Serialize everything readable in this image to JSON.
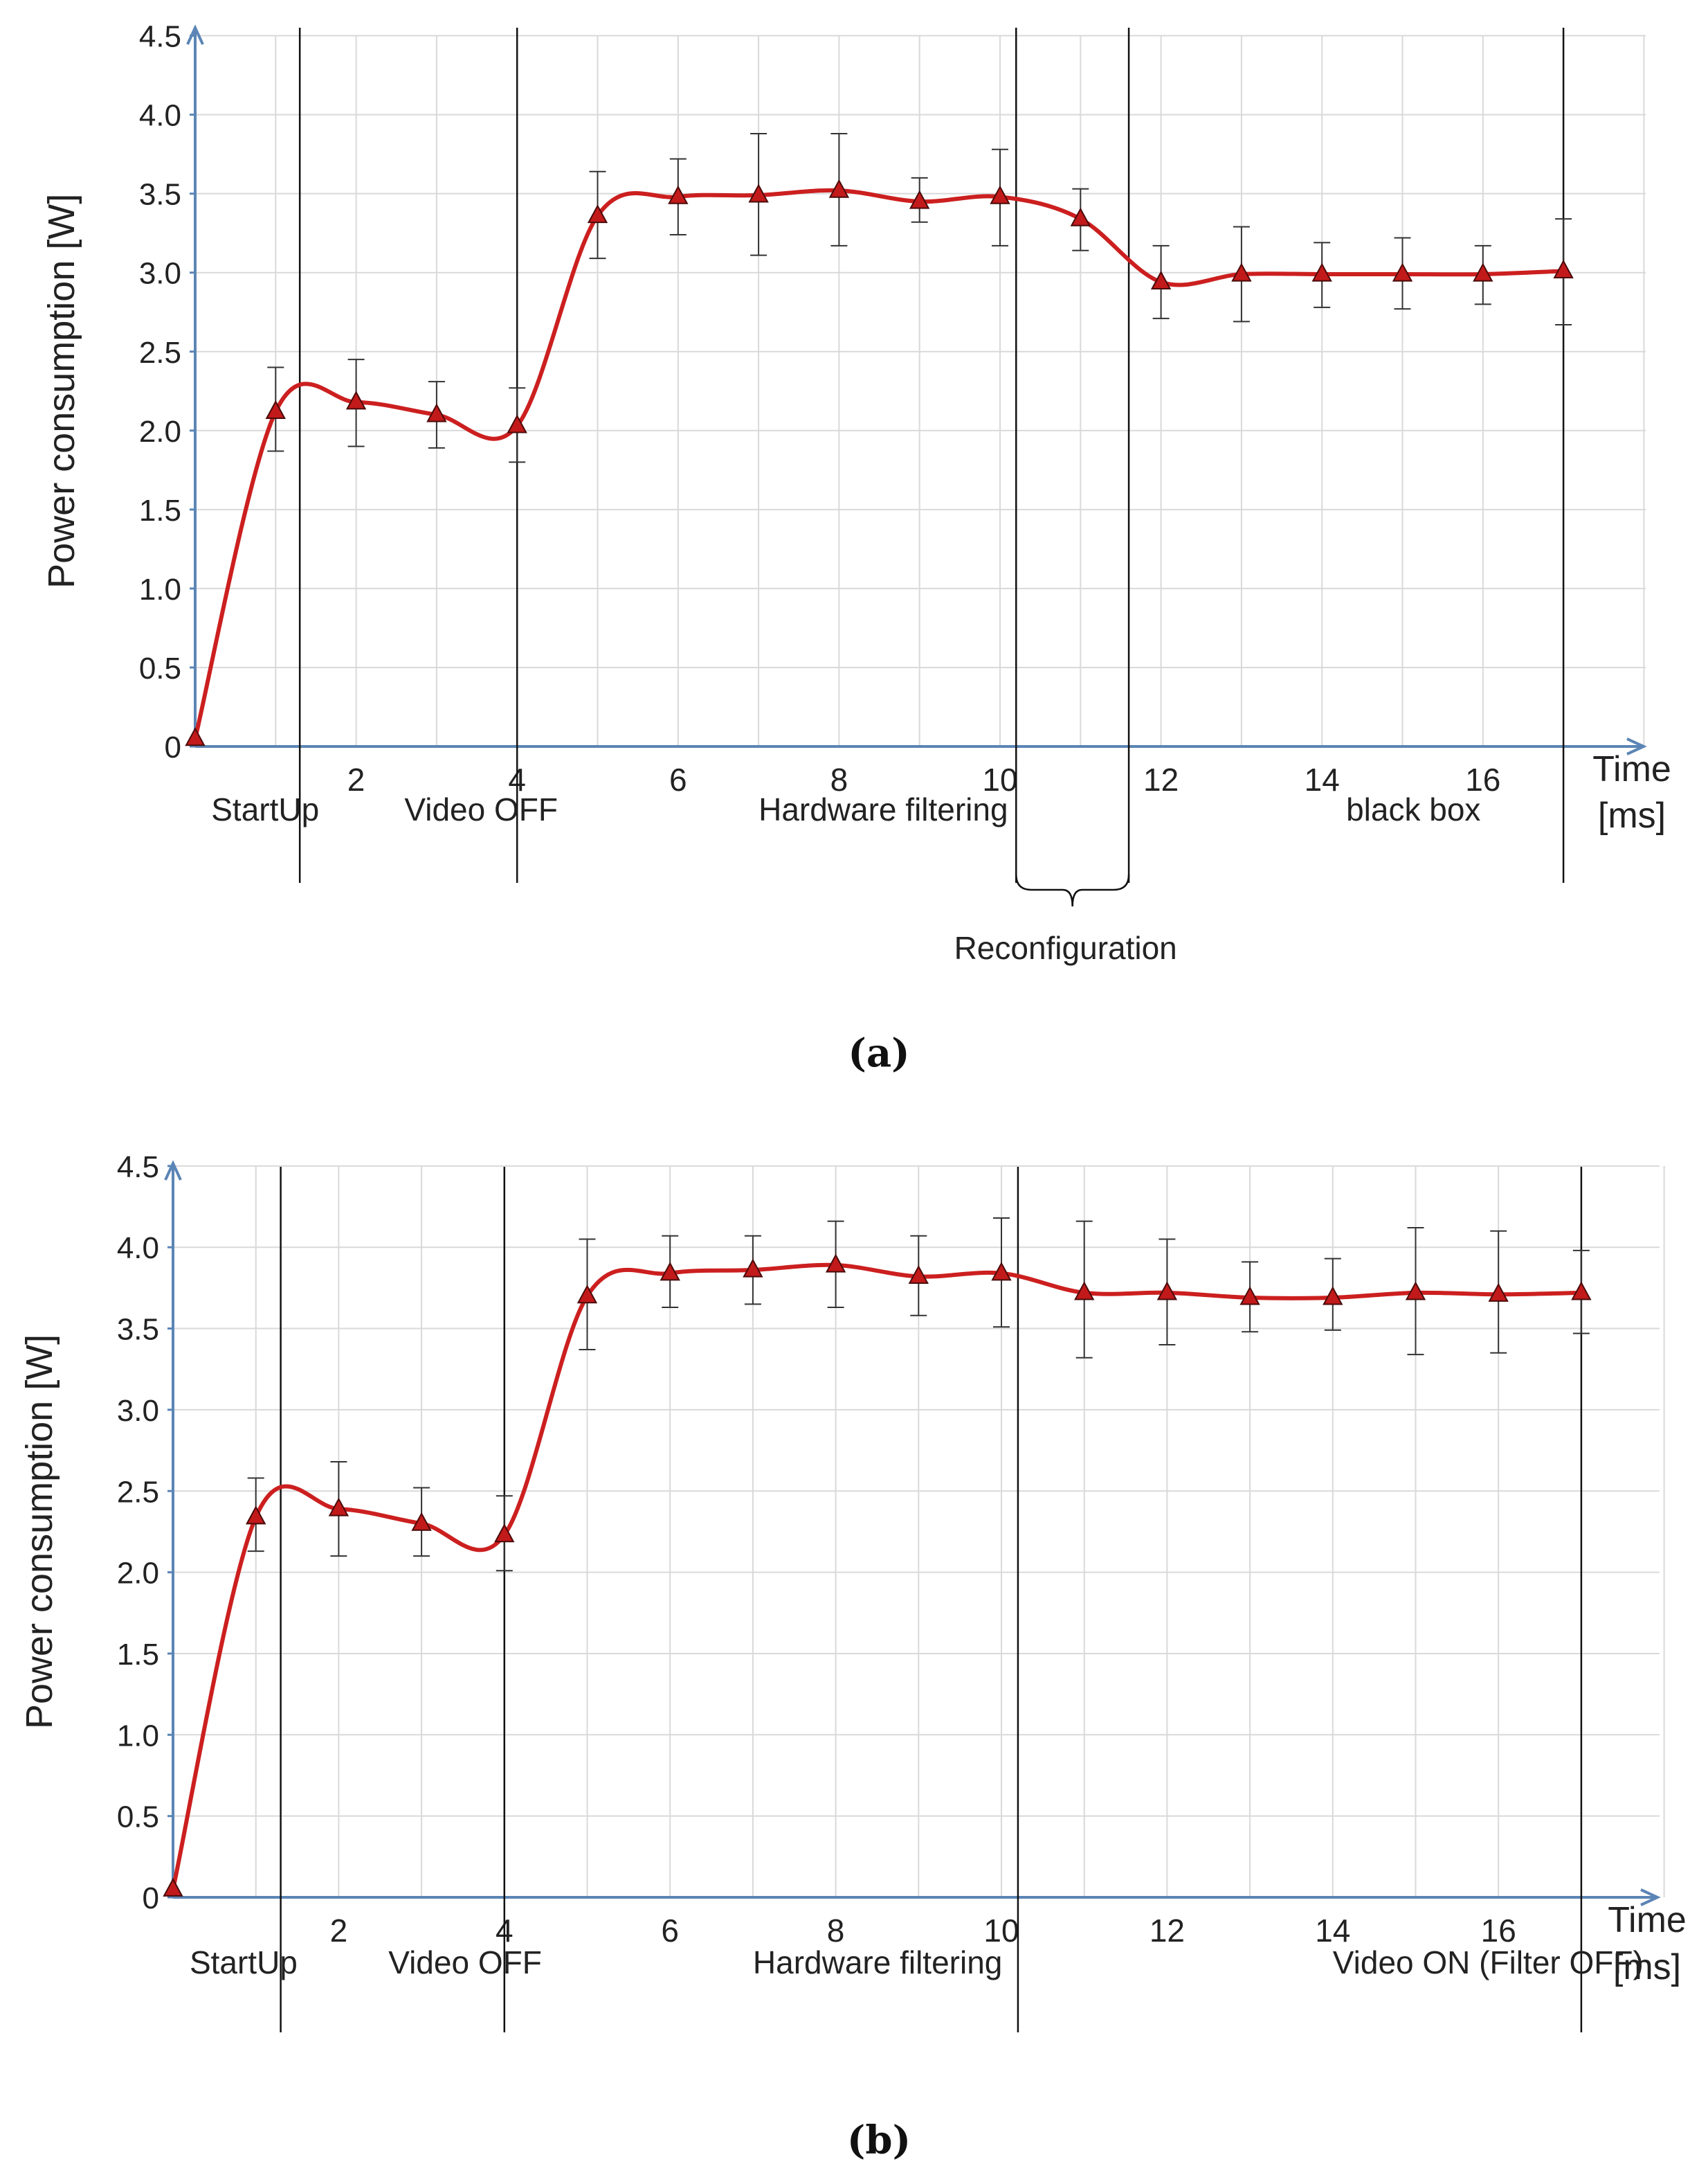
{
  "chart_data": [
    {
      "id": "a",
      "type": "line",
      "caption": "(a)",
      "ylabel": "Power consumption [W]",
      "xlabel_line1": "Time",
      "xlabel_line2": "[ms]",
      "ylim": [
        0,
        4.5
      ],
      "xlim": [
        0,
        18.5
      ],
      "x_ticks": [
        2,
        4,
        6,
        8,
        10,
        12,
        14,
        16
      ],
      "y_ticks": [
        0,
        0.5,
        1.0,
        1.5,
        2.0,
        2.5,
        3.0,
        3.5,
        4.0,
        4.5
      ],
      "y_tick_labels": [
        "0",
        "0.5",
        "1.0",
        "1.5",
        "2.0",
        "2.5",
        "3.0",
        "3.5",
        "4.0",
        "4.5"
      ],
      "grid": true,
      "series": [
        {
          "name": "power",
          "color": "#cc1f1f",
          "x": [
            0,
            1,
            2,
            3,
            4,
            5,
            6,
            7,
            8,
            9,
            10,
            11,
            12,
            13,
            14,
            15,
            16,
            17
          ],
          "y": [
            0.05,
            2.12,
            2.18,
            2.1,
            2.03,
            3.36,
            3.48,
            3.49,
            3.52,
            3.45,
            3.48,
            3.34,
            2.94,
            2.99,
            2.99,
            2.99,
            2.99,
            3.01
          ],
          "err_low": [
            0.05,
            1.87,
            1.9,
            1.89,
            1.8,
            3.09,
            3.24,
            3.11,
            3.17,
            3.32,
            3.17,
            3.14,
            2.71,
            2.69,
            2.78,
            2.77,
            2.8,
            2.67
          ],
          "err_high": [
            0.05,
            2.4,
            2.45,
            2.31,
            2.27,
            3.64,
            3.72,
            3.88,
            3.88,
            3.6,
            3.78,
            3.53,
            3.17,
            3.29,
            3.19,
            3.22,
            3.17,
            3.34
          ]
        }
      ],
      "phase_boundaries": [
        1.3,
        4.0,
        10.2,
        11.6,
        17.0
      ],
      "phase_labels": [
        "StartUp",
        "Video OFF",
        "Hardware filtering",
        "black box"
      ],
      "phase_label_x": [
        0.2,
        2.6,
        7.0,
        14.3
      ],
      "reconfiguration": {
        "label": "Reconfiguration",
        "from": 10.2,
        "to": 11.6
      }
    },
    {
      "id": "b",
      "type": "line",
      "caption": "(b)",
      "ylabel": "Power consumption [W]",
      "xlabel_line1": "Time",
      "xlabel_line2": "[ms]",
      "ylim": [
        0,
        4.5
      ],
      "xlim": [
        0,
        18.5
      ],
      "x_ticks": [
        2,
        4,
        6,
        8,
        10,
        12,
        14,
        16
      ],
      "y_ticks": [
        0,
        0.5,
        1.0,
        1.5,
        2.0,
        2.5,
        3.0,
        3.5,
        4.0,
        4.5
      ],
      "y_tick_labels": [
        "0",
        "0.5",
        "1.0",
        "1.5",
        "2.0",
        "2.5",
        "3.0",
        "3.5",
        "4.0",
        "4.5"
      ],
      "grid": true,
      "series": [
        {
          "name": "power",
          "color": "#cc1f1f",
          "x": [
            0,
            1,
            2,
            3,
            4,
            5,
            6,
            7,
            8,
            9,
            10,
            11,
            12,
            13,
            14,
            15,
            16,
            17
          ],
          "y": [
            0.05,
            2.34,
            2.39,
            2.3,
            2.23,
            3.7,
            3.84,
            3.86,
            3.89,
            3.82,
            3.84,
            3.72,
            3.72,
            3.69,
            3.69,
            3.72,
            3.71,
            3.72
          ],
          "err_low": [
            0.05,
            2.13,
            2.1,
            2.1,
            2.01,
            3.37,
            3.63,
            3.65,
            3.63,
            3.58,
            3.51,
            3.32,
            3.4,
            3.48,
            3.49,
            3.34,
            3.35,
            3.47
          ],
          "err_high": [
            0.05,
            2.58,
            2.68,
            2.52,
            2.47,
            4.05,
            4.07,
            4.07,
            4.16,
            4.07,
            4.18,
            4.16,
            4.05,
            3.91,
            3.93,
            4.12,
            4.1,
            3.98
          ]
        }
      ],
      "phase_boundaries": [
        1.3,
        4.0,
        10.2,
        17.0
      ],
      "phase_labels": [
        "StartUp",
        "Video OFF",
        "Hardware filtering",
        "Video ON (Filter OFF)"
      ],
      "phase_label_x": [
        0.2,
        2.6,
        7.0,
        14.0
      ]
    }
  ]
}
